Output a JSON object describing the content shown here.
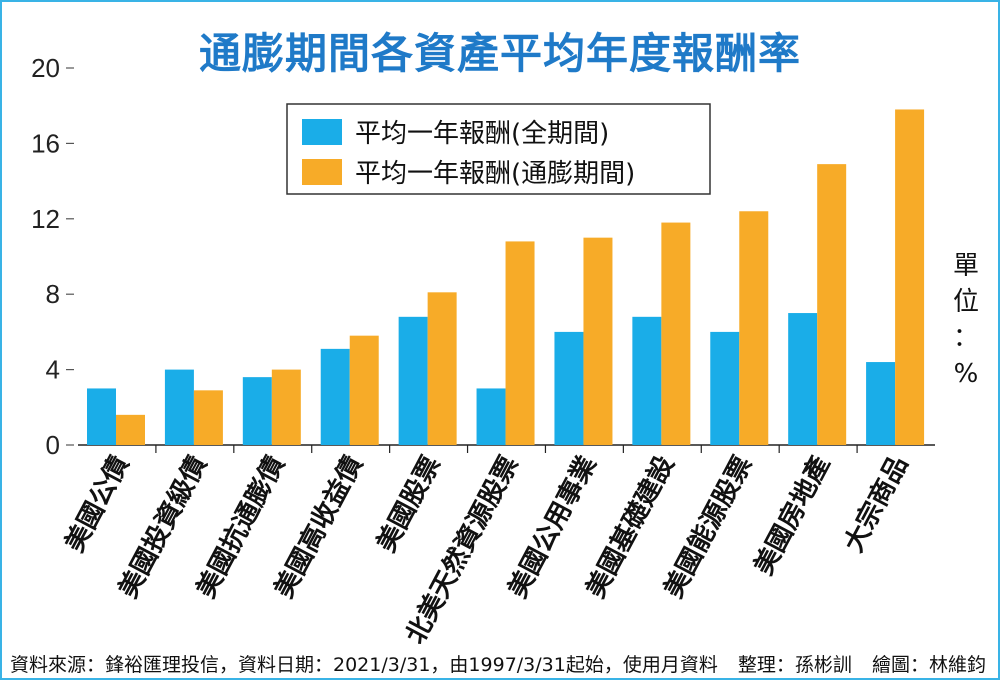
{
  "chart_data": {
    "type": "bar",
    "title": "通膨期間各資產平均年度報酬率",
    "categories": [
      "美國公債",
      "美國投資級債",
      "美國抗通膨債",
      "美國高收益債",
      "美國股票",
      "北美天然資源股票",
      "美國公用事業",
      "美國基礎建設",
      "美國能源股票",
      "美國房地產",
      "大宗商品"
    ],
    "series": [
      {
        "name": "平均一年報酬(全期間)",
        "color": "#1aade8",
        "values": [
          3.0,
          4.0,
          3.6,
          5.1,
          6.8,
          3.0,
          6.0,
          6.8,
          6.0,
          7.0,
          4.4
        ]
      },
      {
        "name": "平均一年報酬(通膨期間)",
        "color": "#f7ab28",
        "values": [
          1.6,
          2.9,
          4.0,
          5.8,
          8.1,
          10.8,
          11.0,
          11.8,
          12.4,
          14.9,
          17.8
        ]
      }
    ],
    "yticks": [
      "0",
      "4",
      "8",
      "12",
      "16",
      "20"
    ],
    "ylim": [
      0,
      20
    ],
    "legend_position": "top-center",
    "unit_label": "單位：%"
  },
  "footer": {
    "source": "資料來源：鋒裕匯理投信，資料日期：2021/3/31，由1997/3/31起始，使用月資料",
    "editor": "整理：孫彬訓",
    "illustrator": "繪圖：林維鈞"
  }
}
